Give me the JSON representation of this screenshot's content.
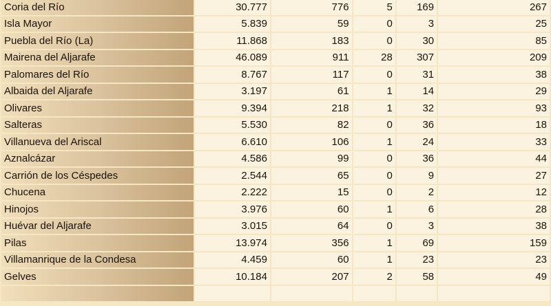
{
  "table": {
    "rows": [
      {
        "name": "Coria del Río",
        "values": [
          "30.777",
          "776",
          "5",
          "169",
          "267"
        ]
      },
      {
        "name": "Isla Mayor",
        "values": [
          "5.839",
          "59",
          "0",
          "3",
          "25"
        ]
      },
      {
        "name": "Puebla del Río (La)",
        "values": [
          "11.868",
          "183",
          "0",
          "30",
          "85"
        ]
      },
      {
        "name": "Mairena del Aljarafe",
        "values": [
          "46.089",
          "911",
          "28",
          "307",
          "209"
        ]
      },
      {
        "name": "Palomares del Río",
        "values": [
          "8.767",
          "117",
          "0",
          "31",
          "38"
        ]
      },
      {
        "name": "Albaida del Aljarafe",
        "values": [
          "3.197",
          "61",
          "1",
          "14",
          "29"
        ]
      },
      {
        "name": "Olivares",
        "values": [
          "9.394",
          "218",
          "1",
          "32",
          "93"
        ]
      },
      {
        "name": "Salteras",
        "values": [
          "5.530",
          "82",
          "0",
          "36",
          "18"
        ]
      },
      {
        "name": "Villanueva del Ariscal",
        "values": [
          "6.610",
          "106",
          "1",
          "24",
          "33"
        ]
      },
      {
        "name": "Aznalcázar",
        "values": [
          "4.586",
          "99",
          "0",
          "36",
          "44"
        ]
      },
      {
        "name": "Carrión de los Céspedes",
        "values": [
          "2.544",
          "65",
          "0",
          "9",
          "27"
        ]
      },
      {
        "name": "Chucena",
        "values": [
          "2.222",
          "15",
          "0",
          "2",
          "12"
        ]
      },
      {
        "name": "Hinojos",
        "values": [
          "3.976",
          "60",
          "1",
          "6",
          "28"
        ]
      },
      {
        "name": "Huévar del Aljarafe",
        "values": [
          "3.015",
          "64",
          "0",
          "3",
          "38"
        ]
      },
      {
        "name": "Pilas",
        "values": [
          "13.974",
          "356",
          "1",
          "69",
          "159"
        ]
      },
      {
        "name": "Villamanrique de la Condesa",
        "values": [
          "4.459",
          "60",
          "1",
          "23",
          "23"
        ]
      },
      {
        "name": "Gelves",
        "values": [
          "10.184",
          "207",
          "2",
          "58",
          "49"
        ]
      },
      {
        "name": "",
        "values": [
          "",
          "",
          "",
          "",
          ""
        ]
      }
    ]
  }
}
